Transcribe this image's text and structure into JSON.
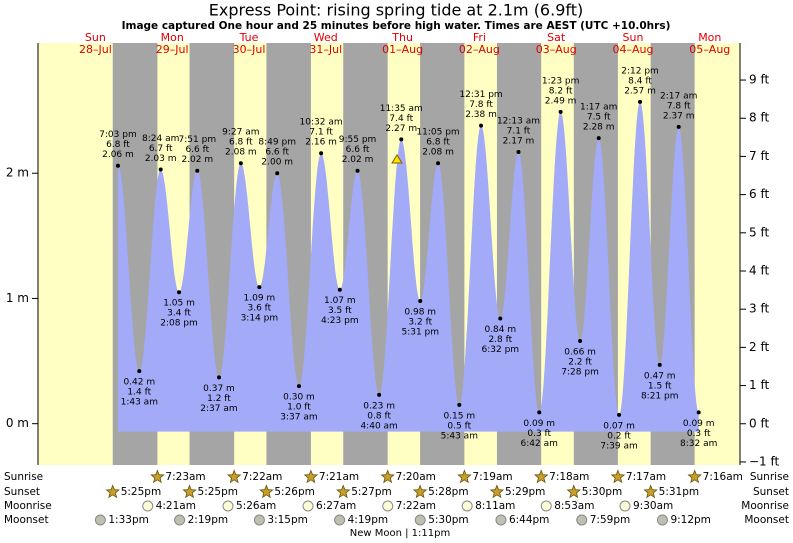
{
  "chart_data": {
    "type": "tide",
    "title": "Express Point: rising  spring tide at 2.1m (6.9ft)",
    "subtitle": "Image captured One hour and 25 minutes before high water. Times are AEST (UTC +10.0hrs)",
    "ylim": [
      -0.33,
      3.04
    ],
    "yticks": [
      {
        "value": 0,
        "label": "0 m"
      },
      {
        "value": 1,
        "label": "1 m"
      },
      {
        "value": 2,
        "label": "2 m"
      }
    ],
    "y2lim": [
      -1.08,
      9.97
    ],
    "y2ticks": [
      {
        "value": -1,
        "label": "−1 ft"
      },
      {
        "value": 0,
        "label": "0 ft"
      },
      {
        "value": 1,
        "label": "1 ft"
      },
      {
        "value": 2,
        "label": "2 ft"
      },
      {
        "value": 3,
        "label": "3 ft"
      },
      {
        "value": 4,
        "label": "4 ft"
      },
      {
        "value": 5,
        "label": "5 ft"
      },
      {
        "value": 6,
        "label": "6 ft"
      },
      {
        "value": 7,
        "label": "7 ft"
      },
      {
        "value": 8,
        "label": "8 ft"
      },
      {
        "value": 9,
        "label": "9 ft"
      }
    ],
    "row_labels": {
      "sunrise": "Sunrise",
      "sunset": "Sunset",
      "moonrise": "Moonrise",
      "moonset": "Moonset"
    },
    "moon_phase": "New Moon | 1:11pm",
    "days": [
      {
        "weekday": "Sun",
        "date": "28–Jul",
        "sunset": "5:25pm",
        "moonset": "1:33pm",
        "tides": [
          {
            "time": "7:03 pm",
            "m": 2.06,
            "m_label": "2.06 m",
            "ft_label": "6.8 ft"
          }
        ]
      },
      {
        "weekday": "Mon",
        "date": "29–Jul",
        "sunrise": "7:23am",
        "sunset": "5:25pm",
        "moonrise": "4:21am",
        "moonset": "2:19pm",
        "tides": [
          {
            "time": "1:43 am",
            "m": 0.42,
            "m_label": "0.42 m",
            "ft_label": "1.4 ft"
          },
          {
            "time": "8:24 am",
            "m": 2.03,
            "m_label": "2.03 m",
            "ft_label": "6.7 ft"
          },
          {
            "time": "2:08 pm",
            "m": 1.05,
            "m_label": "1.05 m",
            "ft_label": "3.4 ft"
          },
          {
            "time": "7:51 pm",
            "m": 2.02,
            "m_label": "2.02 m",
            "ft_label": "6.6 ft"
          }
        ]
      },
      {
        "weekday": "Tue",
        "date": "30–Jul",
        "sunrise": "7:22am",
        "sunset": "5:26pm",
        "moonrise": "5:26am",
        "moonset": "3:15pm",
        "tides": [
          {
            "time": "2:37 am",
            "m": 0.37,
            "m_label": "0.37 m",
            "ft_label": "1.2 ft"
          },
          {
            "time": "9:27 am",
            "m": 2.08,
            "m_label": "2.08 m",
            "ft_label": "6.8 ft"
          },
          {
            "time": "3:14 pm",
            "m": 1.09,
            "m_label": "1.09 m",
            "ft_label": "3.6 ft"
          },
          {
            "time": "8:49 pm",
            "m": 2.0,
            "m_label": "2.00 m",
            "ft_label": "6.6 ft"
          }
        ]
      },
      {
        "weekday": "Wed",
        "date": "31–Jul",
        "sunrise": "7:21am",
        "sunset": "5:27pm",
        "moonrise": "6:27am",
        "moonset": "4:19pm",
        "tides": [
          {
            "time": "3:37 am",
            "m": 0.3,
            "m_label": "0.30 m",
            "ft_label": "1.0 ft"
          },
          {
            "time": "10:32 am",
            "m": 2.16,
            "m_label": "2.16 m",
            "ft_label": "7.1 ft"
          },
          {
            "time": "4:23 pm",
            "m": 1.07,
            "m_label": "1.07 m",
            "ft_label": "3.5 ft"
          },
          {
            "time": "9:55 pm",
            "m": 2.02,
            "m_label": "2.02 m",
            "ft_label": "6.6 ft"
          }
        ]
      },
      {
        "weekday": "Thu",
        "date": "01–Aug",
        "sunrise": "7:20am",
        "sunset": "5:28pm",
        "moonrise": "7:22am",
        "moonset": "5:30pm",
        "tides": [
          {
            "time": "4:40 am",
            "m": 0.23,
            "m_label": "0.23 m",
            "ft_label": "0.8 ft"
          },
          {
            "time": "11:35 am",
            "m": 2.27,
            "m_label": "2.27 m",
            "ft_label": "7.4 ft"
          },
          {
            "time": "5:31 pm",
            "m": 0.98,
            "m_label": "0.98 m",
            "ft_label": "3.2 ft"
          },
          {
            "time": "11:05 pm",
            "m": 2.08,
            "m_label": "2.08 m",
            "ft_label": "6.8 ft"
          }
        ]
      },
      {
        "weekday": "Fri",
        "date": "02–Aug",
        "sunrise": "7:19am",
        "sunset": "5:29pm",
        "moonrise": "8:11am",
        "moonset": "6:44pm",
        "tides": [
          {
            "time": "5:43 am",
            "m": 0.15,
            "m_label": "0.15 m",
            "ft_label": "0.5 ft"
          },
          {
            "time": "12:31 pm",
            "m": 2.38,
            "m_label": "2.38 m",
            "ft_label": "7.8 ft"
          },
          {
            "time": "6:32 pm",
            "m": 0.84,
            "m_label": "0.84 m",
            "ft_label": "2.8 ft"
          }
        ]
      },
      {
        "weekday": "Sat",
        "date": "03–Aug",
        "sunrise": "7:18am",
        "sunset": "5:30pm",
        "moonrise": "8:53am",
        "moonset": "7:59pm",
        "tides": [
          {
            "time": "12:13 am",
            "m": 2.17,
            "m_label": "2.17 m",
            "ft_label": "7.1 ft"
          },
          {
            "time": "6:42 am",
            "m": 0.09,
            "m_label": "0.09 m",
            "ft_label": "0.3 ft"
          },
          {
            "time": "1:23 pm",
            "m": 2.49,
            "m_label": "2.49 m",
            "ft_label": "8.2 ft"
          },
          {
            "time": "7:28 pm",
            "m": 0.66,
            "m_label": "0.66 m",
            "ft_label": "2.2 ft"
          }
        ]
      },
      {
        "weekday": "Sun",
        "date": "04–Aug",
        "sunrise": "7:17am",
        "sunset": "5:31pm",
        "moonrise": "9:30am",
        "moonset": "9:12pm",
        "tides": [
          {
            "time": "1:17 am",
            "m": 2.28,
            "m_label": "2.28 m",
            "ft_label": "7.5 ft"
          },
          {
            "time": "7:39 am",
            "m": 0.07,
            "m_label": "0.07 m",
            "ft_label": "0.2 ft"
          },
          {
            "time": "2:12 pm",
            "m": 2.57,
            "m_label": "2.57 m",
            "ft_label": "8.4 ft"
          },
          {
            "time": "8:21 pm",
            "m": 0.47,
            "m_label": "0.47 m",
            "ft_label": "1.5 ft"
          }
        ]
      },
      {
        "weekday": "Mon",
        "date": "05–Aug",
        "sunrise": "7:16am",
        "tides": [
          {
            "time": "2:17 am",
            "m": 2.37,
            "m_label": "2.37 m",
            "ft_label": "7.8 ft"
          },
          {
            "time": "8:32 am",
            "m": 0.09,
            "m_label": "0.09 m",
            "ft_label": "0.3 ft"
          }
        ]
      }
    ]
  }
}
